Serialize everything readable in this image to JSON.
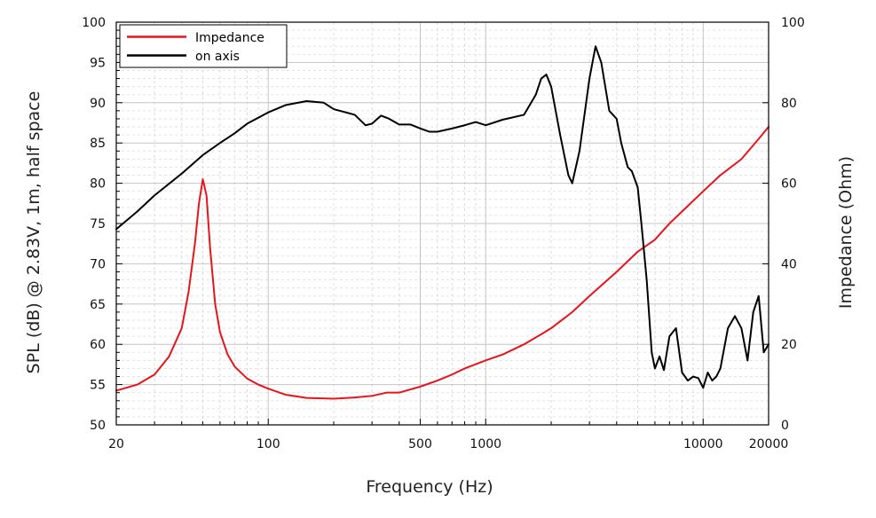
{
  "chart_data": {
    "type": "line",
    "title": "",
    "xlabel": "Frequency (Hz)",
    "ylabel": "SPL (dB) @ 2.83V, 1m, half space",
    "y2label": "Impedance (Ohm)",
    "xscale": "log",
    "xlim": [
      20,
      20000
    ],
    "ylim": [
      50,
      100
    ],
    "y2lim": [
      0,
      100
    ],
    "grid": true,
    "legend_position": "top-left",
    "x_ticks": [
      {
        "value": 20,
        "label": "20"
      },
      {
        "value": 100,
        "label": "100"
      },
      {
        "value": 500,
        "label": "500"
      },
      {
        "value": 1000,
        "label": "1000"
      },
      {
        "value": 10000,
        "label": "10000"
      },
      {
        "value": 20000,
        "label": "20000"
      }
    ],
    "y_ticks": [
      "50",
      "55",
      "60",
      "65",
      "70",
      "75",
      "80",
      "85",
      "90",
      "95",
      "100"
    ],
    "y2_ticks": [
      "0",
      "20",
      "40",
      "60",
      "80",
      "100"
    ],
    "series": [
      {
        "name": "Impedance",
        "axis": "right",
        "color": "#e8141c",
        "x": [
          20,
          25,
          30,
          35,
          40,
          43,
          46,
          48,
          50,
          52,
          54,
          57,
          60,
          65,
          70,
          80,
          90,
          100,
          120,
          150,
          200,
          250,
          300,
          350,
          400,
          500,
          600,
          700,
          800,
          1000,
          1200,
          1500,
          1800,
          2000,
          2500,
          3000,
          4000,
          5000,
          6000,
          7000,
          8000,
          10000,
          12000,
          15000,
          18000,
          20000
        ],
        "values": [
          8.5,
          10,
          12.5,
          17,
          24,
          33,
          45,
          55,
          61,
          57,
          44,
          30,
          23,
          17.5,
          14.5,
          11.5,
          10,
          9,
          7.5,
          6.7,
          6.5,
          6.8,
          7.2,
          8,
          8,
          9.5,
          11,
          12.5,
          14,
          16,
          17.5,
          20,
          22.5,
          24,
          28,
          32,
          38,
          43,
          46,
          50,
          53,
          58,
          62,
          66,
          71,
          74
        ]
      },
      {
        "name": "on axis",
        "axis": "left",
        "color": "#000000",
        "x": [
          20,
          25,
          30,
          40,
          50,
          60,
          70,
          80,
          100,
          120,
          150,
          180,
          200,
          250,
          280,
          300,
          330,
          360,
          400,
          450,
          500,
          550,
          600,
          700,
          800,
          900,
          1000,
          1200,
          1500,
          1700,
          1800,
          1900,
          2000,
          2200,
          2400,
          2500,
          2700,
          3000,
          3200,
          3400,
          3700,
          4000,
          4200,
          4500,
          4700,
          5000,
          5200,
          5500,
          5800,
          6000,
          6300,
          6600,
          7000,
          7500,
          8000,
          8500,
          9000,
          9500,
          10000,
          10500,
          11000,
          11500,
          12000,
          13000,
          14000,
          15000,
          16000,
          17000,
          18000,
          19000,
          20000
        ],
        "values": [
          74.3,
          76.5,
          78.5,
          81.2,
          83.5,
          85,
          86.2,
          87.4,
          88.8,
          89.7,
          90.2,
          90,
          89.2,
          88.5,
          87.2,
          87.4,
          88.4,
          88,
          87.3,
          87.3,
          86.8,
          86.4,
          86.4,
          86.8,
          87.2,
          87.6,
          87.2,
          87.9,
          88.5,
          91,
          93,
          93.5,
          92,
          86,
          81,
          80,
          84,
          93,
          97,
          95,
          89,
          88,
          85,
          82,
          81.5,
          79.5,
          75,
          68,
          59,
          57,
          58.5,
          56.8,
          61,
          62,
          56.5,
          55.5,
          56,
          55.8,
          54.6,
          56.5,
          55.5,
          56,
          57,
          62,
          63.5,
          62,
          58,
          64,
          66,
          59,
          60
        ]
      }
    ]
  }
}
